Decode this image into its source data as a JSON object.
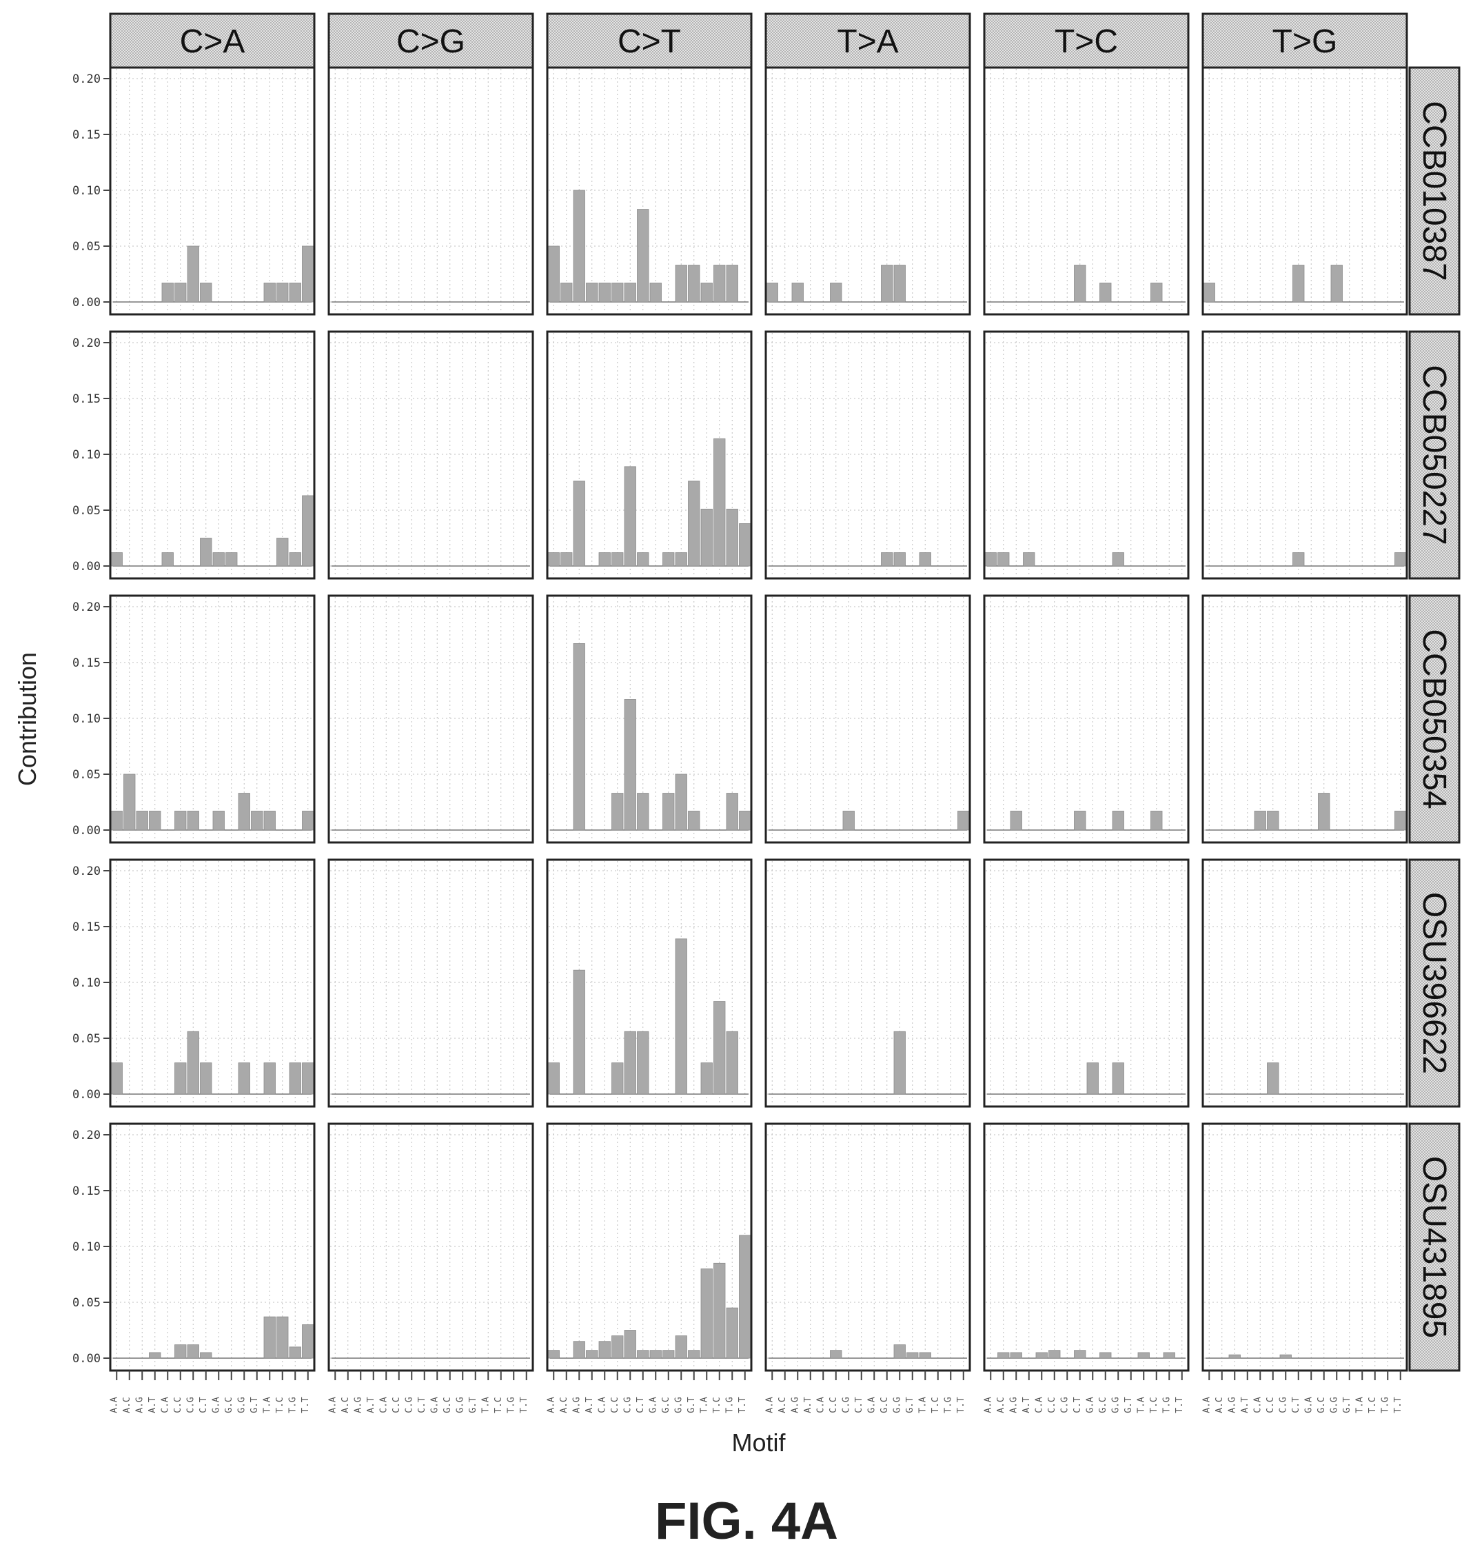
{
  "figure_label": "FIG. 4A",
  "colors": {
    "bar": "#a9a9a9",
    "strip": "#d2d2d2",
    "panel_border": "#222222",
    "grid": "#bfbfbf"
  },
  "chart_data": {
    "type": "bar",
    "title": "",
    "xlabel": "Motif",
    "ylabel": "Contribution",
    "ylim": [
      0,
      0.2
    ],
    "yticks": [
      "0.00",
      "0.05",
      "0.10",
      "0.15",
      "0.20"
    ],
    "grid": true,
    "columns": [
      "C>A",
      "C>G",
      "C>T",
      "T>A",
      "T>C",
      "T>G"
    ],
    "rows": [
      "CCB010387",
      "CCB050227",
      "CCB050354",
      "OSU396622",
      "OSU431895"
    ],
    "motifs_per_panel": 16,
    "motif_contexts": [
      "A.A",
      "A.C",
      "A.G",
      "A.T",
      "C.A",
      "C.C",
      "C.G",
      "C.T",
      "G.A",
      "G.C",
      "G.G",
      "G.T",
      "T.A",
      "T.C",
      "T.G",
      "T.T"
    ],
    "motif_tick_labels_note": "illegible in source",
    "panels": [
      [
        [
          0,
          0,
          0,
          0,
          0.017,
          0.017,
          0.05,
          0.017,
          0,
          0,
          0,
          0,
          0.017,
          0.017,
          0.017,
          0.05
        ],
        [
          0,
          0,
          0,
          0,
          0,
          0,
          0,
          0,
          0,
          0,
          0,
          0,
          0,
          0,
          0,
          0
        ],
        [
          0.05,
          0.017,
          0.1,
          0.017,
          0.017,
          0.017,
          0.017,
          0.083,
          0.017,
          0,
          0.033,
          0.033,
          0.017,
          0.033,
          0.033,
          0
        ],
        [
          0.017,
          0,
          0.017,
          0,
          0,
          0.017,
          0,
          0,
          0,
          0.033,
          0.033,
          0,
          0,
          0,
          0,
          0
        ],
        [
          0,
          0,
          0,
          0,
          0,
          0,
          0,
          0.033,
          0,
          0.017,
          0,
          0,
          0,
          0.017,
          0,
          0
        ],
        [
          0.017,
          0,
          0,
          0,
          0,
          0,
          0,
          0.033,
          0,
          0,
          0.033,
          0,
          0,
          0,
          0,
          0
        ]
      ],
      [
        [
          0.012,
          0,
          0,
          0,
          0.012,
          0,
          0,
          0.025,
          0.012,
          0.012,
          0,
          0,
          0,
          0.025,
          0.012,
          0.063
        ],
        [
          0,
          0,
          0,
          0,
          0,
          0,
          0,
          0,
          0,
          0,
          0,
          0,
          0,
          0,
          0,
          0
        ],
        [
          0.012,
          0.012,
          0.076,
          0,
          0.012,
          0.012,
          0.089,
          0.012,
          0,
          0.012,
          0.012,
          0.076,
          0.051,
          0.114,
          0.051,
          0.038
        ],
        [
          0,
          0,
          0,
          0,
          0,
          0,
          0,
          0,
          0,
          0.012,
          0.012,
          0,
          0.012,
          0,
          0,
          0
        ],
        [
          0.012,
          0.012,
          0,
          0.012,
          0,
          0,
          0,
          0,
          0,
          0,
          0.012,
          0,
          0,
          0,
          0,
          0
        ],
        [
          0,
          0,
          0,
          0,
          0,
          0,
          0,
          0.012,
          0,
          0,
          0,
          0,
          0,
          0,
          0,
          0.012
        ]
      ],
      [
        [
          0.017,
          0.05,
          0.017,
          0.017,
          0,
          0.017,
          0.017,
          0,
          0.017,
          0,
          0.033,
          0.017,
          0.017,
          0,
          0,
          0.017
        ],
        [
          0,
          0,
          0,
          0,
          0,
          0,
          0,
          0,
          0,
          0,
          0,
          0,
          0,
          0,
          0,
          0
        ],
        [
          0,
          0,
          0.167,
          0,
          0,
          0.033,
          0.117,
          0.033,
          0,
          0.033,
          0.05,
          0.017,
          0,
          0,
          0.033,
          0.017
        ],
        [
          0,
          0,
          0,
          0,
          0,
          0,
          0.017,
          0,
          0,
          0,
          0,
          0,
          0,
          0,
          0,
          0.017
        ],
        [
          0,
          0,
          0.017,
          0,
          0,
          0,
          0,
          0.017,
          0,
          0,
          0.017,
          0,
          0,
          0.017,
          0,
          0
        ],
        [
          0,
          0,
          0,
          0,
          0.017,
          0.017,
          0,
          0,
          0,
          0.033,
          0,
          0,
          0,
          0,
          0,
          0.017
        ]
      ],
      [
        [
          0.028,
          0,
          0,
          0,
          0,
          0.028,
          0.056,
          0.028,
          0,
          0,
          0.028,
          0,
          0.028,
          0,
          0.028,
          0.028
        ],
        [
          0,
          0,
          0,
          0,
          0,
          0,
          0,
          0,
          0,
          0,
          0,
          0,
          0,
          0,
          0,
          0
        ],
        [
          0.028,
          0,
          0.111,
          0,
          0,
          0.028,
          0.056,
          0.056,
          0,
          0,
          0.139,
          0,
          0.028,
          0.083,
          0.056,
          0
        ],
        [
          0,
          0,
          0,
          0,
          0,
          0,
          0,
          0,
          0,
          0,
          0.056,
          0,
          0,
          0,
          0,
          0
        ],
        [
          0,
          0,
          0,
          0,
          0,
          0,
          0,
          0,
          0.028,
          0,
          0.028,
          0,
          0,
          0,
          0,
          0
        ],
        [
          0,
          0,
          0,
          0,
          0,
          0.028,
          0,
          0,
          0,
          0,
          0,
          0,
          0,
          0,
          0,
          0
        ]
      ],
      [
        [
          0,
          0,
          0,
          0.005,
          0,
          0.012,
          0.012,
          0.005,
          0,
          0,
          0,
          0,
          0.037,
          0.037,
          0.01,
          0.03
        ],
        [
          0,
          0,
          0,
          0,
          0,
          0,
          0,
          0,
          0,
          0,
          0,
          0,
          0,
          0,
          0,
          0
        ],
        [
          0.007,
          0,
          0.015,
          0.007,
          0.015,
          0.02,
          0.025,
          0.007,
          0.007,
          0.007,
          0.02,
          0.007,
          0.08,
          0.085,
          0.045,
          0.11
        ],
        [
          0,
          0,
          0,
          0,
          0,
          0.007,
          0,
          0,
          0,
          0,
          0.012,
          0.005,
          0.005,
          0,
          0,
          0
        ],
        [
          0,
          0.005,
          0.005,
          0,
          0.005,
          0.007,
          0,
          0.007,
          0,
          0.005,
          0,
          0,
          0.005,
          0,
          0.005,
          0
        ],
        [
          0,
          0,
          0.003,
          0,
          0,
          0,
          0.003,
          0,
          0,
          0,
          0,
          0,
          0,
          0,
          0,
          0
        ]
      ]
    ]
  }
}
